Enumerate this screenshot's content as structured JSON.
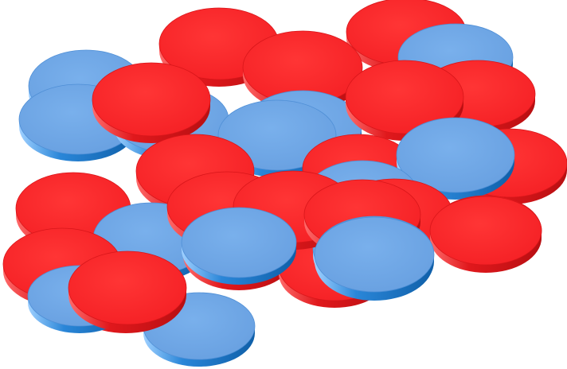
{
  "scene": {
    "description_name": "overlapping-discs",
    "background_color": "#ffffff",
    "colors": {
      "red_top": "#ff2a2a",
      "red_edge_dark": "#b80f12",
      "red_edge_light": "#ff6a6a",
      "blue_top": "#6fa8e8",
      "blue_edge_dark": "#0f5fa8",
      "blue_edge_light": "#9fd0ff"
    },
    "disc_count": 38,
    "disc_order": [
      "blue",
      "blue",
      "red",
      "red",
      "blue",
      "red",
      "blue",
      "red",
      "red",
      "blue",
      "red",
      "blue",
      "red",
      "red",
      "blue",
      "red",
      "red",
      "blue",
      "red",
      "red",
      "blue",
      "red",
      "blue",
      "red",
      "red",
      "blue",
      "blue",
      "red",
      "red",
      "blue",
      "red",
      "red",
      "red",
      "blue",
      "red",
      "blue",
      "red",
      "blue"
    ]
  }
}
